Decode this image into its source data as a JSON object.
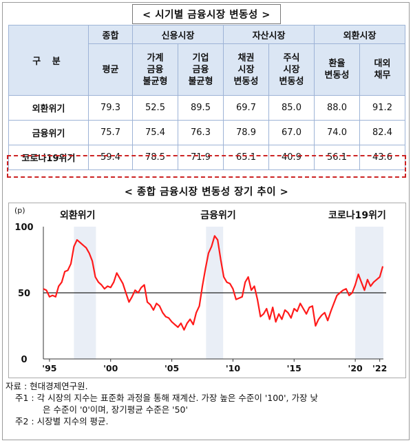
{
  "table": {
    "title": "< 시기별 금융시장 변동성 >",
    "gu_label": "구 분",
    "groups": [
      {
        "label": "종합",
        "span": 1
      },
      {
        "label": "신용시장",
        "span": 2
      },
      {
        "label": "자산시장",
        "span": 2
      },
      {
        "label": "외환시장",
        "span": 2
      }
    ],
    "subheaders": [
      [
        "평균"
      ],
      [
        "가계",
        "금융",
        "불균형"
      ],
      [
        "기업",
        "금융",
        "불균형"
      ],
      [
        "채권",
        "시장",
        "변동성"
      ],
      [
        "주식",
        "시장",
        "변동성"
      ],
      [
        "환율",
        "변동성"
      ],
      [
        "대외",
        "채무"
      ]
    ],
    "rows": [
      {
        "label": "외환위기",
        "values": [
          "79.3",
          "52.5",
          "89.5",
          "69.7",
          "85.0",
          "88.0",
          "91.2"
        ]
      },
      {
        "label": "금융위기",
        "values": [
          "75.7",
          "75.4",
          "76.3",
          "78.9",
          "67.0",
          "74.0",
          "82.4"
        ]
      },
      {
        "label": "코로나19위기",
        "values": [
          "59.4",
          "78.5",
          "71.9",
          "65.1",
          "40.9",
          "56.1",
          "43.6"
        ]
      }
    ],
    "highlight_color": "#cc2222",
    "header_bg": "#dbe6f4"
  },
  "chart_data": {
    "type": "line",
    "title": "< 종합 금융시장 변동성 장기 추이 >",
    "unit_label": "(p)",
    "ylim": [
      0,
      100
    ],
    "yticks": [
      0,
      50,
      100
    ],
    "xlim": [
      1994.5,
      2022.3
    ],
    "xticks": [
      {
        "x": 1995,
        "label": "'95"
      },
      {
        "x": 2000,
        "label": "'00"
      },
      {
        "x": 2005,
        "label": "'05"
      },
      {
        "x": 2010,
        "label": "'10"
      },
      {
        "x": 2015,
        "label": "'15"
      },
      {
        "x": 2020,
        "label": "'20"
      },
      {
        "x": 2022,
        "label": "'22"
      }
    ],
    "reference_line": 50,
    "line_color": "#ff1a1a",
    "crisis_bands": [
      {
        "label": "외환위기",
        "from": 1997.0,
        "to": 1998.8
      },
      {
        "label": "금융위기",
        "from": 2007.8,
        "to": 2009.2
      },
      {
        "label": "코로나19위기",
        "from": 2020.0,
        "to": 2022.3
      }
    ],
    "band_color": "#e9eef6",
    "x": [
      1994.5,
      1994.75,
      1995.0,
      1995.25,
      1995.5,
      1995.75,
      1996.0,
      1996.25,
      1996.5,
      1996.75,
      1997.0,
      1997.25,
      1997.5,
      1997.75,
      1998.0,
      1998.25,
      1998.5,
      1998.75,
      1999.0,
      1999.25,
      1999.5,
      1999.75,
      2000.0,
      2000.25,
      2000.5,
      2000.75,
      2001.0,
      2001.25,
      2001.5,
      2001.75,
      2002.0,
      2002.25,
      2002.5,
      2002.75,
      2003.0,
      2003.25,
      2003.5,
      2003.75,
      2004.0,
      2004.25,
      2004.5,
      2004.75,
      2005.0,
      2005.25,
      2005.5,
      2005.75,
      2006.0,
      2006.25,
      2006.5,
      2006.75,
      2007.0,
      2007.25,
      2007.5,
      2007.75,
      2008.0,
      2008.25,
      2008.5,
      2008.75,
      2009.0,
      2009.25,
      2009.5,
      2009.75,
      2010.0,
      2010.25,
      2010.5,
      2010.75,
      2011.0,
      2011.25,
      2011.5,
      2011.75,
      2012.0,
      2012.25,
      2012.5,
      2012.75,
      2013.0,
      2013.25,
      2013.5,
      2013.75,
      2014.0,
      2014.25,
      2014.5,
      2014.75,
      2015.0,
      2015.25,
      2015.5,
      2015.75,
      2016.0,
      2016.25,
      2016.5,
      2016.75,
      2017.0,
      2017.25,
      2017.5,
      2017.75,
      2018.0,
      2018.25,
      2018.5,
      2018.75,
      2019.0,
      2019.25,
      2019.5,
      2019.75,
      2020.0,
      2020.25,
      2020.5,
      2020.75,
      2021.0,
      2021.25,
      2021.5,
      2021.75,
      2022.0,
      2022.25
    ],
    "y": [
      53,
      52,
      47,
      48,
      47,
      55,
      58,
      66,
      67,
      72,
      85,
      90,
      88,
      86,
      84,
      80,
      74,
      62,
      58,
      56,
      53,
      55,
      54,
      58,
      65,
      61,
      57,
      50,
      43,
      47,
      52,
      50,
      54,
      56,
      43,
      41,
      37,
      42,
      40,
      35,
      32,
      31,
      28,
      26,
      24,
      27,
      22,
      27,
      30,
      26,
      35,
      40,
      55,
      68,
      80,
      85,
      93,
      90,
      75,
      62,
      58,
      57,
      53,
      45,
      46,
      47,
      58,
      62,
      52,
      55,
      45,
      32,
      34,
      38,
      30,
      39,
      28,
      34,
      30,
      37,
      35,
      31,
      38,
      36,
      42,
      38,
      34,
      39,
      40,
      25,
      30,
      33,
      35,
      29,
      36,
      42,
      48,
      50,
      52,
      53,
      48,
      50,
      56,
      64,
      58,
      52,
      60,
      55,
      58,
      60,
      62,
      70
    ]
  },
  "notes": {
    "source": "자료 : 현대경제연구원.",
    "note1a": "주1 : 각 시장의 지수는 표준화 과정을 통해 재계산. 가장 높은 수준이 '100', 가장 낮",
    "note1b": "은 수준이 '0'이며, 장기평균 수준은 '50'",
    "note2": "주2 : 시장별 지수의 평균."
  }
}
